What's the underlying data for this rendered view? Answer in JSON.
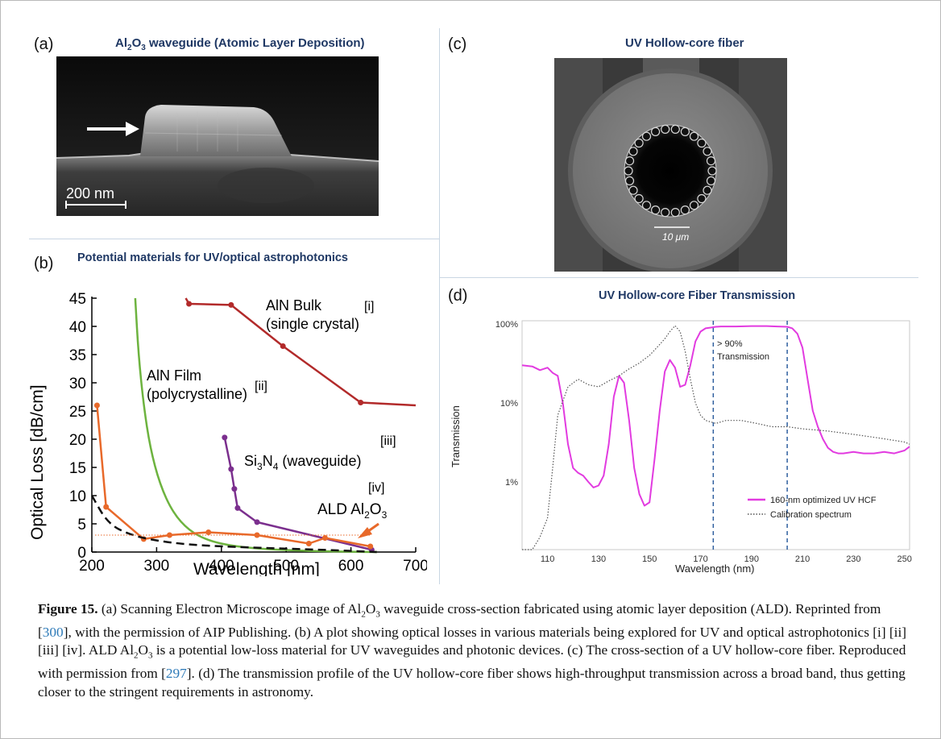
{
  "panel_a": {
    "letter": "(a)",
    "title_prefix": "Al",
    "title_sub1": "2",
    "title_mid": "O",
    "title_sub2": "3",
    "title_suffix": " waveguide (Atomic Layer Deposition)",
    "scale_label": "200 nm"
  },
  "panel_b": {
    "letter": "(b)",
    "title": "Potential materials for UV/optical astrophotonics"
  },
  "panel_c": {
    "letter": "(c)",
    "title": "UV Hollow-core fiber",
    "scale_label": "10 μm"
  },
  "panel_d": {
    "letter": "(d)",
    "title": "UV Hollow-core Fiber Transmission"
  },
  "chart_data": [
    {
      "type": "line",
      "xlabel": "Wavelength [nm]",
      "ylabel": "Optical Loss [dB/cm]",
      "xlim": [
        200,
        700
      ],
      "ylim": [
        0,
        45
      ],
      "xticks": [
        "200",
        "300",
        "400",
        "500",
        "600",
        "700"
      ],
      "yticks": [
        "0",
        "5",
        "10",
        "15",
        "20",
        "25",
        "30",
        "35",
        "40",
        "45"
      ],
      "color_aln_bulk": "#b22a2a",
      "color_aln_film": "#6db33f",
      "color_si3n4": "#7b2f8e",
      "color_ald": "#e8692a",
      "color_dashed": "#111111",
      "labels": {
        "aln_bulk_1": "AlN Bulk",
        "aln_bulk_2": "(single crystal)",
        "aln_bulk_ref": "[i]",
        "aln_film_1": "AlN Film",
        "aln_film_2": "(polycrystalline)",
        "aln_film_ref": "[ii]",
        "si3n4_a": "Si",
        "si3n4_sub1": "3",
        "si3n4_b": "N",
        "si3n4_sub2": "4",
        "si3n4_c": " (waveguide)",
        "si3n4_ref": "[iii]",
        "ald_a": "ALD Al",
        "ald_sub1": "2",
        "ald_b": "O",
        "ald_sub2": "3",
        "ald_ref": "[iv]"
      },
      "series": [
        {
          "key": "aln_bulk",
          "marker": true,
          "x": [
            345,
            350,
            415,
            495,
            615,
            700
          ],
          "y": [
            45,
            44,
            43.8,
            36.5,
            26.5,
            26
          ]
        },
        {
          "key": "aln_film",
          "marker": false,
          "x": [
            267,
            272,
            280,
            290,
            305,
            325,
            350,
            380,
            420,
            470,
            530,
            600,
            640
          ],
          "y": [
            45,
            35,
            26,
            18.5,
            12,
            7,
            3.8,
            2,
            1,
            0.5,
            0.2,
            0.05,
            0
          ]
        },
        {
          "key": "si3n4",
          "marker": true,
          "x": [
            405,
            415,
            420,
            425,
            455,
            632
          ],
          "y": [
            20.3,
            14.7,
            11.2,
            7.8,
            5.3,
            0.4
          ]
        },
        {
          "key": "ald",
          "marker": true,
          "x": [
            208,
            222,
            280,
            320,
            380,
            455,
            535,
            560,
            630
          ],
          "y": [
            26,
            8,
            2.3,
            3,
            3.5,
            3,
            1.5,
            2.5,
            1
          ]
        },
        {
          "key": "dashed",
          "marker": false,
          "x": [
            200,
            225,
            260,
            300,
            350,
            420,
            500,
            580,
            640
          ],
          "y": [
            10,
            5,
            3,
            2,
            1.3,
            0.9,
            0.6,
            0.3,
            0
          ]
        },
        {
          "key": "dotted_ref",
          "marker": false,
          "x": [
            205,
            630
          ],
          "y": [
            3,
            3
          ]
        }
      ]
    },
    {
      "type": "line",
      "xlabel": "Wavelength (nm)",
      "ylabel": "Transmission",
      "xlim": [
        100,
        252
      ],
      "yscale": "log",
      "xticks": [
        "110",
        "130",
        "150",
        "170",
        "190",
        "210",
        "230",
        "250"
      ],
      "yticks": [
        "1%",
        "10%",
        "100%"
      ],
      "annotation_1": "> 90%",
      "annotation_2": "Transmission",
      "dashed_lines_x": [
        175,
        204
      ],
      "color_hcf": "#e23be0",
      "color_cal": "#555555",
      "color_vline": "#2f5f9f",
      "series": [
        {
          "name": "160-nm optimized UV HCF",
          "x": [
            100,
            104,
            107,
            110,
            112,
            114,
            116,
            118,
            120,
            122,
            124,
            126,
            128,
            130,
            132,
            134,
            136,
            138,
            140,
            142,
            144,
            146,
            148,
            150,
            152,
            154,
            156,
            158,
            160,
            162,
            164,
            166,
            168,
            170,
            172,
            174,
            176,
            178,
            180,
            184,
            190,
            196,
            200,
            204,
            206,
            208,
            210,
            212,
            214,
            216,
            218,
            220,
            222,
            224,
            226,
            230,
            234,
            238,
            242,
            246,
            250,
            252
          ],
          "y": [
            30,
            29,
            26,
            28,
            24,
            22,
            10,
            3,
            1.5,
            1.3,
            1.2,
            1.0,
            0.85,
            0.9,
            1.2,
            3,
            12,
            22,
            18,
            6,
            1.5,
            0.7,
            0.5,
            0.55,
            2,
            8,
            25,
            35,
            28,
            16,
            17,
            30,
            60,
            80,
            88,
            90,
            92,
            93,
            93,
            93,
            94,
            94,
            93,
            92,
            88,
            75,
            50,
            20,
            8,
            5,
            3.5,
            2.7,
            2.4,
            2.3,
            2.3,
            2.4,
            2.3,
            2.3,
            2.4,
            2.3,
            2.5,
            2.8
          ]
        },
        {
          "name": "Calibration spectrum",
          "x": [
            100,
            104,
            107,
            110,
            112,
            114,
            118,
            122,
            126,
            130,
            134,
            138,
            142,
            146,
            150,
            154,
            156,
            158,
            160,
            162,
            164,
            166,
            168,
            170,
            172,
            176,
            180,
            186,
            192,
            198,
            204,
            210,
            220,
            230,
            240,
            250,
            252
          ],
          "y": [
            0.1,
            0.13,
            0.2,
            0.35,
            1.5,
            7,
            16,
            20,
            17,
            16,
            19,
            22,
            27,
            32,
            40,
            55,
            65,
            80,
            95,
            80,
            45,
            20,
            10,
            7,
            6,
            5.5,
            6,
            6,
            5.5,
            5,
            5,
            4.7,
            4.4,
            4,
            3.6,
            3.2,
            3
          ]
        }
      ]
    }
  ],
  "caption": {
    "label": "Figure 15.",
    "p1": " (a) Scanning Electron Microscope image of Al",
    "s1": "2",
    "p2": "O",
    "s2": "3",
    "p3": " waveguide cross-section fabricated using atomic layer deposition (ALD). Reprinted from [",
    "ref1": "300",
    "p4": "], with the permission of AIP Publishing. (b) A plot showing optical losses in various materials being explored for UV and optical astrophotonics [i] [ii] [iii] [iv]. ALD Al",
    "s3": "2",
    "p5": "O",
    "s4": "3",
    "p6": " is a potential low-loss material for UV waveguides and photonic devices. (c) The cross-section of a UV hollow-core fiber. Reproduced with permission from [",
    "ref2": "297",
    "p7": "]. (d) The transmission profile of the UV hollow-core fiber shows high-throughput transmission across a broad band, thus getting closer to the stringent requirements in astronomy."
  }
}
